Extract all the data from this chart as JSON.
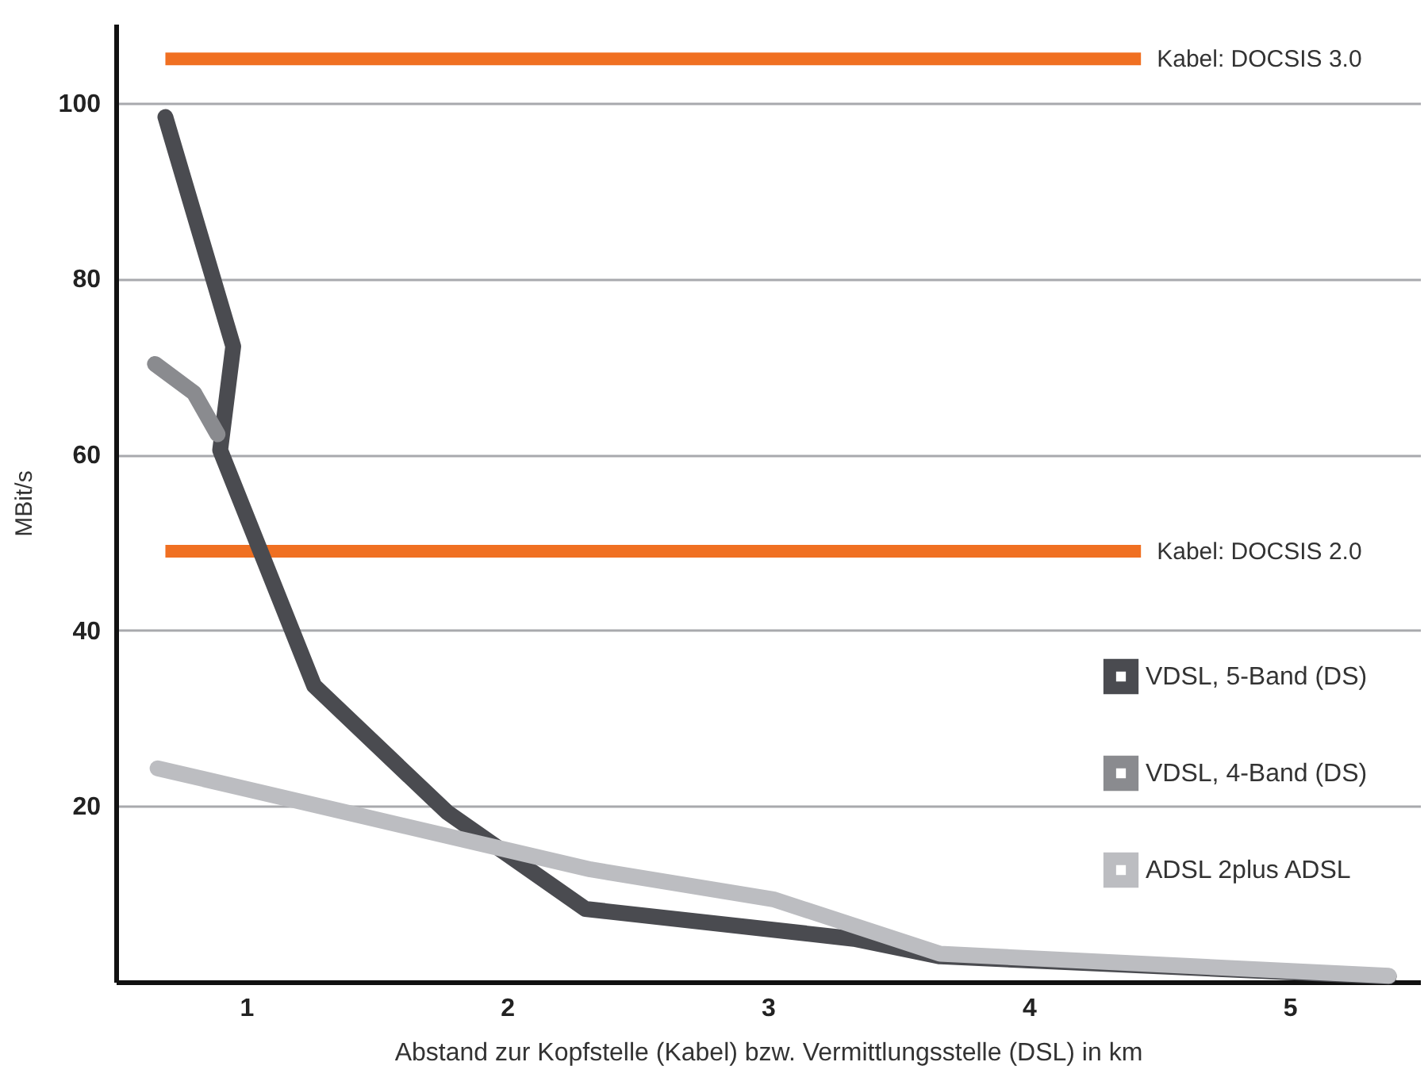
{
  "chart_data": {
    "type": "line",
    "xlabel": "Abstand zur Kopfstelle (Kabel) bzw. Vermittlungsstelle (DSL) in km",
    "ylabel": "MBit/s",
    "xlim": [
      0.5,
      5.5
    ],
    "xticks": [
      1,
      2,
      3,
      4,
      5
    ],
    "ylim": [
      0,
      109
    ],
    "yticks": [
      20,
      40,
      60,
      80,
      100
    ],
    "grid": "y",
    "legend": "right",
    "line_style": "solid",
    "marker": "none",
    "series": [
      {
        "name": "Kabel: DOCSIS 3.0",
        "type": "line",
        "color": "#f07022",
        "x": [
          0.69,
          4.43
        ],
        "values": [
          105,
          105
        ]
      },
      {
        "name": "Kabel: DOCSIS 2.0",
        "type": "line",
        "color": "#f07022",
        "x": [
          0.69,
          4.43
        ],
        "values": [
          49,
          49
        ]
      },
      {
        "name": "VDSL, 5-Band (DS)",
        "color": "#4a4b50",
        "x": [
          0.69,
          0.95,
          0.9,
          1.26,
          1.77,
          2.3,
          3.33,
          3.66,
          5.38
        ],
        "values": [
          98.4,
          72.3,
          60.5,
          33.7,
          19.3,
          8.3,
          4.9,
          2.9,
          0.6
        ]
      },
      {
        "name": "VDSL, 4-Band (DS)",
        "color": "#8a8b8f",
        "x": [
          0.65,
          0.8,
          0.89
        ],
        "values": [
          70.3,
          67,
          62.3
        ]
      },
      {
        "name": "ADSL 2plus ADSL",
        "color": "#bcbdc1",
        "x": [
          0.66,
          2.32,
          3.02,
          3.66,
          5.38
        ],
        "values": [
          24.3,
          12.8,
          9.4,
          3.2,
          0.7
        ]
      }
    ]
  }
}
